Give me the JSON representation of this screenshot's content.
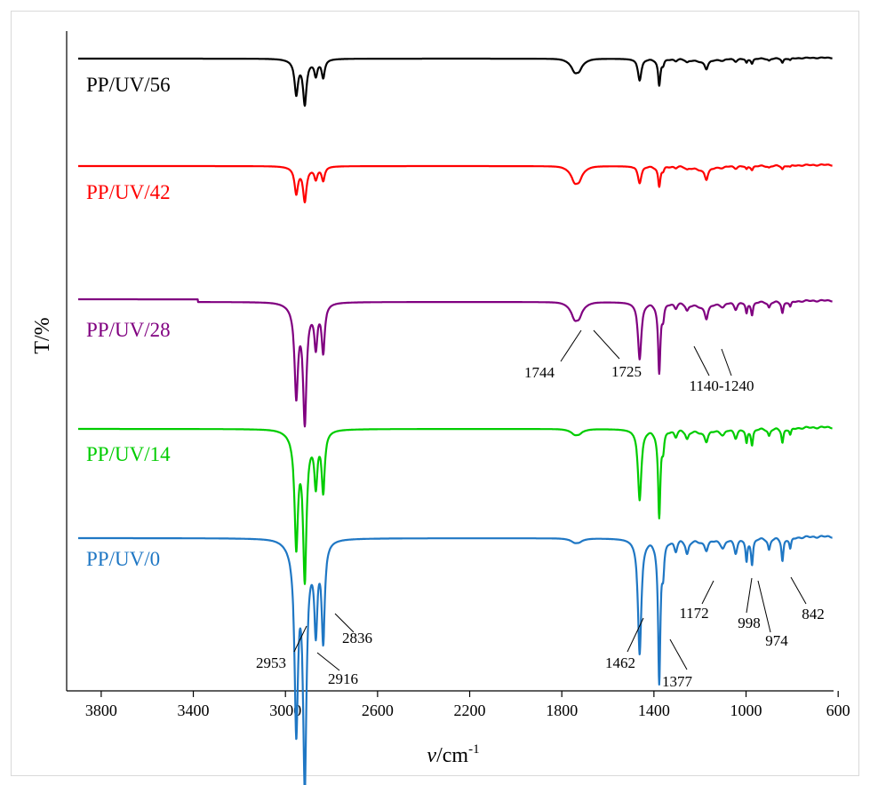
{
  "chart_data": {
    "type": "line",
    "title": "",
    "xlabel_symbol": "ν",
    "xlabel_unit": "/cm",
    "xlabel_exponent": "-1",
    "ylabel": "T/%",
    "xlim": [
      3950,
      620
    ],
    "x_reversed": true,
    "xticks": [
      3800,
      3400,
      3000,
      2600,
      2200,
      1800,
      1400,
      1000,
      600
    ],
    "grid": false,
    "series": [
      {
        "name": "PP/UV/56",
        "color": "#000000",
        "baseline": 0,
        "depth": 1.0,
        "carbonyl": 1.6,
        "ester": 1.3
      },
      {
        "name": "PP/UV/42",
        "color": "#ff0000",
        "baseline": 1,
        "depth": 0.55,
        "carbonyl": 1.4,
        "ester": 1.2
      },
      {
        "name": "PP/UV/28",
        "color": "#800080",
        "baseline": 2,
        "depth": 1.65,
        "carbonyl": 1.3,
        "ester": 1.3
      },
      {
        "name": "PP/UV/14",
        "color": "#00cc00",
        "baseline": 3,
        "depth": 1.7,
        "carbonyl": 0.35,
        "ester": 0.8
      },
      {
        "name": "PP/UV/0",
        "color": "#1f77c4",
        "baseline": 4,
        "depth": 2.6,
        "carbonyl": 0.25,
        "ester": 0.7
      }
    ],
    "peaks": [
      {
        "x": 2953,
        "depth": 0.78,
        "width": 9
      },
      {
        "x": 2916,
        "depth": 1.0,
        "width": 9
      },
      {
        "x": 2868,
        "depth": 0.35,
        "width": 8
      },
      {
        "x": 2836,
        "depth": 0.42,
        "width": 8
      },
      {
        "x": 1744,
        "depth": 0.12,
        "width": 16,
        "group": "carbonyl"
      },
      {
        "x": 1725,
        "depth": 0.09,
        "width": 14,
        "group": "carbonyl"
      },
      {
        "x": 1462,
        "depth": 0.5,
        "width": 9
      },
      {
        "x": 1377,
        "depth": 0.62,
        "width": 6
      },
      {
        "x": 1360,
        "depth": 0.12,
        "width": 6
      },
      {
        "x": 1305,
        "depth": 0.05,
        "width": 8
      },
      {
        "x": 1256,
        "depth": 0.06,
        "width": 8
      },
      {
        "x": 1172,
        "depth": 0.14,
        "width": 8,
        "group": "ester"
      },
      {
        "x": 1100,
        "depth": 0.04,
        "width": 12
      },
      {
        "x": 1045,
        "depth": 0.06,
        "width": 8
      },
      {
        "x": 998,
        "depth": 0.1,
        "width": 5
      },
      {
        "x": 974,
        "depth": 0.11,
        "width": 5
      },
      {
        "x": 900,
        "depth": 0.05,
        "width": 6
      },
      {
        "x": 842,
        "depth": 0.1,
        "width": 5
      },
      {
        "x": 808,
        "depth": 0.05,
        "width": 5
      }
    ],
    "annotations": [
      {
        "text": "2953",
        "series": "PP/UV/0"
      },
      {
        "text": "2916",
        "series": "PP/UV/0"
      },
      {
        "text": "2836",
        "series": "PP/UV/0"
      },
      {
        "text": "1462",
        "series": "PP/UV/0"
      },
      {
        "text": "1377",
        "series": "PP/UV/0"
      },
      {
        "text": "1172",
        "series": "PP/UV/0"
      },
      {
        "text": "998",
        "series": "PP/UV/0"
      },
      {
        "text": "974",
        "series": "PP/UV/0"
      },
      {
        "text": "842",
        "series": "PP/UV/0"
      },
      {
        "text": "1744",
        "series": "PP/UV/28"
      },
      {
        "text": "1725",
        "series": "PP/UV/28"
      },
      {
        "text": "1140-1240",
        "series": "PP/UV/28"
      }
    ]
  }
}
